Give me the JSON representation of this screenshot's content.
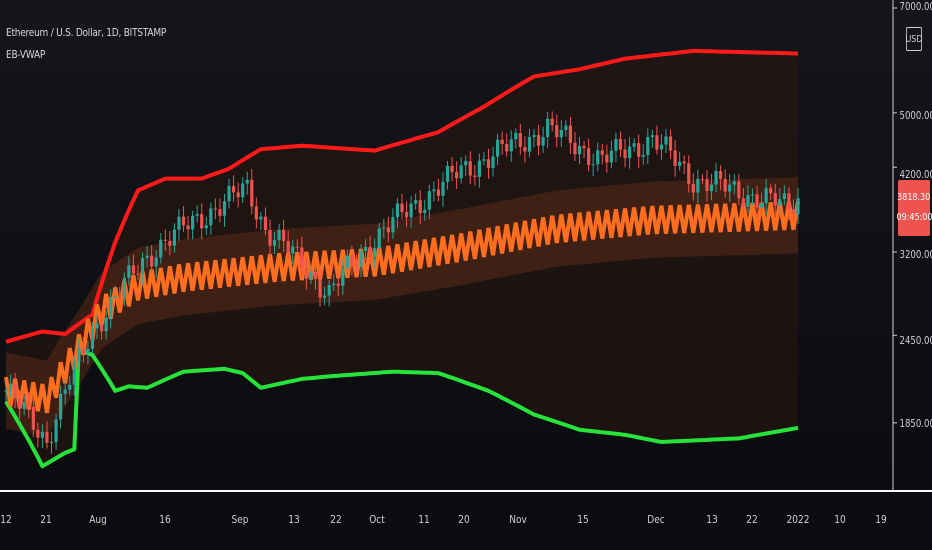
{
  "chart": {
    "symbol_title": "Ethereum / U.S. Dollar, 1D, BITSTAMP",
    "indicator_title": "EB-VWAP",
    "currency": "USD",
    "last_price": "3818.30",
    "countdown": "09:45:00",
    "price_axis": [
      "7000.00",
      "5000.00",
      "4200.00",
      "3200.00",
      "2450.00",
      "1850.00"
    ],
    "time_axis": [
      "12",
      "21",
      "Aug",
      "16",
      "Sep",
      "13",
      "22",
      "Oct",
      "11",
      "20",
      "Nov",
      "15",
      "Dec",
      "13",
      "22",
      "2022",
      "10",
      "19"
    ],
    "colors": {
      "upper_band": "#ff1a1a",
      "lower_band": "#27e23a",
      "vwap": "#ff6d1f",
      "candle_up": "#26a69a",
      "candle_down": "#ef5350",
      "last_price_tag": "#ef5350"
    }
  },
  "chart_data": {
    "type": "candlestick",
    "title": "Ethereum / U.S. Dollar, 1D, BITSTAMP",
    "indicator": "EB-VWAP",
    "y_scale": "log",
    "ylim": [
      1550,
      7000
    ],
    "x_range": [
      "2021-07-12",
      "2022-01-19"
    ],
    "last_price": 3818.3,
    "series": [
      {
        "name": "upper",
        "points": [
          [
            "2021-07-12",
            2400
          ],
          [
            "2021-07-20",
            2480
          ],
          [
            "2021-07-25",
            2460
          ],
          [
            "2021-07-31",
            2620
          ],
          [
            "2021-08-05",
            3300
          ],
          [
            "2021-08-10",
            3900
          ],
          [
            "2021-08-16",
            4050
          ],
          [
            "2021-08-24",
            4050
          ],
          [
            "2021-08-30",
            4180
          ],
          [
            "2021-09-06",
            4450
          ],
          [
            "2021-09-15",
            4500
          ],
          [
            "2021-10-01",
            4430
          ],
          [
            "2021-10-15",
            4700
          ],
          [
            "2021-10-25",
            5100
          ],
          [
            "2021-11-05",
            5620
          ],
          [
            "2021-11-15",
            5750
          ],
          [
            "2021-11-25",
            5950
          ],
          [
            "2021-12-10",
            6100
          ],
          [
            "2022-01-02",
            6050
          ]
        ]
      },
      {
        "name": "lower",
        "points": [
          [
            "2021-07-12",
            1980
          ],
          [
            "2021-07-20",
            1610
          ],
          [
            "2021-07-25",
            1680
          ],
          [
            "2021-07-27",
            1700
          ],
          [
            "2021-07-28",
            2340
          ],
          [
            "2021-07-31",
            2300
          ],
          [
            "2021-08-02",
            2200
          ],
          [
            "2021-08-05",
            2050
          ],
          [
            "2021-08-08",
            2080
          ],
          [
            "2021-08-12",
            2070
          ],
          [
            "2021-08-20",
            2180
          ],
          [
            "2021-08-29",
            2200
          ],
          [
            "2021-09-02",
            2170
          ],
          [
            "2021-09-06",
            2070
          ],
          [
            "2021-09-15",
            2130
          ],
          [
            "2021-09-22",
            2150
          ],
          [
            "2021-10-05",
            2180
          ],
          [
            "2021-10-15",
            2170
          ],
          [
            "2021-10-26",
            2050
          ],
          [
            "2021-11-05",
            1900
          ],
          [
            "2021-11-15",
            1810
          ],
          [
            "2021-11-25",
            1780
          ],
          [
            "2021-12-03",
            1740
          ],
          [
            "2021-12-20",
            1760
          ],
          [
            "2022-01-02",
            1820
          ]
        ]
      },
      {
        "name": "vwap",
        "points": [
          [
            "2021-07-12",
            2050
          ],
          [
            "2021-07-21",
            2000
          ],
          [
            "2021-07-28",
            2350
          ],
          [
            "2021-08-02",
            2650
          ],
          [
            "2021-08-10",
            2870
          ],
          [
            "2021-08-20",
            2950
          ],
          [
            "2021-09-10",
            3050
          ],
          [
            "2021-10-01",
            3100
          ],
          [
            "2021-10-20",
            3250
          ],
          [
            "2021-11-10",
            3450
          ],
          [
            "2021-12-01",
            3550
          ],
          [
            "2022-01-02",
            3600
          ]
        ]
      }
    ],
    "candles_approx": [
      [
        "2021-07-12",
        2050
      ],
      [
        "2021-07-21",
        1750
      ],
      [
        "2021-08-01",
        2550
      ],
      [
        "2021-08-14",
        3250
      ],
      [
        "2021-09-03",
        3920
      ],
      [
        "2021-09-07",
        3450
      ],
      [
        "2021-09-21",
        2800
      ],
      [
        "2021-10-01",
        3350
      ],
      [
        "2021-10-20",
        4150
      ],
      [
        "2021-11-08",
        4750
      ],
      [
        "2021-11-20",
        4300
      ],
      [
        "2021-12-01",
        4600
      ],
      [
        "2021-12-10",
        4050
      ],
      [
        "2021-12-31",
        3700
      ],
      [
        "2022-01-02",
        3818
      ]
    ]
  }
}
